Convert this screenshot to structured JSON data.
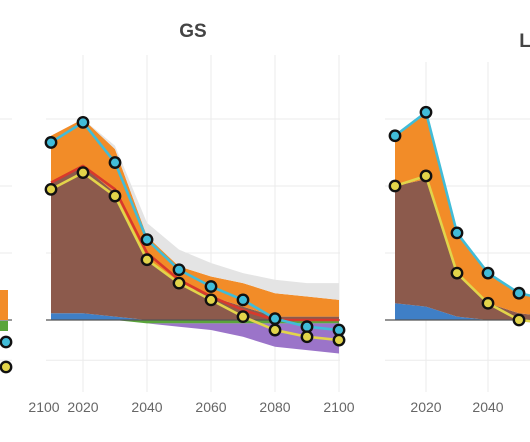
{
  "colors": {
    "dark_brown": "#8c5a4c",
    "orange": "#f28c28",
    "light_gray": "#e4e4e4",
    "blue": "#3f7fc6",
    "green": "#5aa53b",
    "purple": "#9b74c9",
    "cyan_line": "#41bcd8",
    "yellow_line": "#e2d44a",
    "red_line": "#d8392c",
    "marker_edge": "#111111",
    "grid": "#ebebeb",
    "zero_line": "#555555"
  },
  "chart_data": [
    {
      "type": "area",
      "title": "",
      "visible": "partial (cut off at left edge)",
      "x_ticks": [
        "2100"
      ],
      "x": [
        2090,
        2100
      ],
      "series": [
        {
          "values": [
            0.1,
            0.05
          ]
        },
        {
          "values": [
            -0.25,
            -0.5
          ]
        }
      ]
    },
    {
      "type": "area",
      "title": "GS",
      "xlabel": "",
      "ylabel": "",
      "x_ticks": [
        "2020",
        "2040",
        "2060",
        "2080",
        "2100"
      ],
      "xlim": [
        2008,
        2102
      ],
      "ylim": [
        -1.0,
        3.4
      ],
      "grid": true,
      "x": [
        2010,
        2020,
        2030,
        2040,
        2050,
        2060,
        2070,
        2080,
        2090,
        2100
      ],
      "stack_positive": [
        {
          "name": "",
          "color": "blue",
          "values": [
            0.1,
            0.1,
            0.05,
            0.0,
            0.0,
            0.0,
            0.0,
            0.0,
            0.0,
            0.0
          ]
        },
        {
          "name": "",
          "color": "dark_brown",
          "values": [
            1.95,
            2.2,
            1.85,
            0.9,
            0.55,
            0.35,
            0.2,
            0.05,
            0.05,
            0.05
          ]
        },
        {
          "name": "",
          "color": "orange",
          "values": [
            0.7,
            0.7,
            0.65,
            0.35,
            0.25,
            0.3,
            0.35,
            0.35,
            0.3,
            0.25
          ]
        },
        {
          "name": "",
          "color": "light_gray",
          "values": [
            0.0,
            0.0,
            0.05,
            0.2,
            0.25,
            0.2,
            0.15,
            0.2,
            0.2,
            0.25
          ]
        }
      ],
      "stack_negative": [
        {
          "name": "",
          "color": "green",
          "values": [
            0.0,
            0.0,
            0.0,
            -0.05,
            -0.05,
            -0.05,
            -0.05,
            -0.05,
            -0.05,
            -0.05
          ]
        },
        {
          "name": "",
          "color": "purple",
          "values": [
            0.0,
            0.0,
            0.0,
            0.0,
            -0.05,
            -0.1,
            -0.2,
            -0.35,
            -0.4,
            -0.45
          ]
        }
      ],
      "lines": [
        {
          "name": "",
          "color": "cyan_line",
          "markers": true,
          "values": [
            2.65,
            2.95,
            2.35,
            1.2,
            0.75,
            0.5,
            0.3,
            0.02,
            -0.1,
            -0.15
          ]
        },
        {
          "name": "",
          "color": "yellow_line",
          "markers": true,
          "values": [
            1.95,
            2.2,
            1.85,
            0.9,
            0.55,
            0.3,
            0.05,
            -0.15,
            -0.25,
            -0.3
          ]
        },
        {
          "name": "",
          "color": "red_line",
          "markers": false,
          "values": [
            2.05,
            2.3,
            1.95,
            1.0,
            0.6,
            0.35,
            0.15,
            0.0,
            0.0,
            0.0
          ]
        }
      ]
    },
    {
      "type": "area",
      "title": "L",
      "visible": "partial (cut off at right edge)",
      "x_ticks": [
        "2020",
        "2040"
      ],
      "x": [
        2010,
        2020,
        2030,
        2040,
        2050,
        2060
      ],
      "stack_positive": [
        {
          "name": "",
          "color": "blue",
          "values": [
            0.25,
            0.2,
            0.05,
            0.0,
            0.0,
            0.0
          ]
        },
        {
          "name": "",
          "color": "dark_brown",
          "values": [
            1.75,
            1.9,
            0.65,
            0.25,
            0.1,
            0.05
          ]
        },
        {
          "name": "",
          "color": "orange",
          "values": [
            0.75,
            1.0,
            0.6,
            0.45,
            0.3,
            0.25
          ]
        }
      ],
      "stack_negative": [],
      "lines": [
        {
          "name": "",
          "color": "cyan_line",
          "markers": true,
          "values": [
            2.75,
            3.1,
            1.3,
            0.7,
            0.4,
            0.3
          ]
        },
        {
          "name": "",
          "color": "yellow_line",
          "markers": true,
          "values": [
            2.0,
            2.15,
            0.7,
            0.25,
            0.0,
            -0.05
          ]
        }
      ]
    }
  ]
}
